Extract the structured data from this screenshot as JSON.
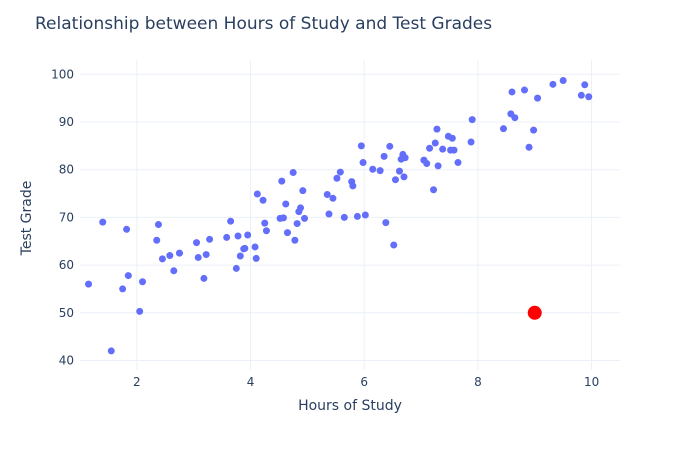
{
  "chart_data": {
    "type": "scatter",
    "title": "Relationship between Hours of Study and Test Grades",
    "xlabel": "Hours of Study",
    "ylabel": "Test Grade",
    "xlim": [
      1,
      10.5
    ],
    "ylim": [
      38,
      103
    ],
    "x_ticks": [
      2,
      4,
      6,
      8,
      10
    ],
    "y_ticks": [
      40,
      50,
      60,
      70,
      80,
      90,
      100
    ],
    "grid": true,
    "legend": "none",
    "colors": {
      "points": "#636efa",
      "highlight": "#ff0000",
      "grid": "#ebf0f8",
      "text": "#2a3f5f"
    },
    "series": [
      {
        "points": [
          [
            1.15,
            56
          ],
          [
            1.4,
            69
          ],
          [
            1.55,
            42
          ],
          [
            1.75,
            55
          ],
          [
            1.82,
            67.5
          ],
          [
            1.85,
            57.8
          ],
          [
            2.05,
            50.3
          ],
          [
            2.1,
            56.5
          ],
          [
            2.35,
            65.2
          ],
          [
            2.38,
            68.5
          ],
          [
            2.45,
            61.3
          ],
          [
            2.58,
            62
          ],
          [
            2.65,
            58.8
          ],
          [
            2.75,
            62.5
          ],
          [
            3.05,
            64.7
          ],
          [
            3.08,
            61.6
          ],
          [
            3.18,
            57.2
          ],
          [
            3.22,
            62.2
          ],
          [
            3.28,
            65.4
          ],
          [
            3.58,
            65.8
          ],
          [
            3.65,
            69.2
          ],
          [
            3.75,
            59.3
          ],
          [
            3.78,
            66.1
          ],
          [
            3.82,
            61.9
          ],
          [
            3.88,
            63.4
          ],
          [
            3.9,
            63.5
          ],
          [
            3.95,
            66.3
          ],
          [
            4.08,
            63.8
          ],
          [
            4.1,
            61.4
          ],
          [
            4.12,
            74.9
          ],
          [
            4.22,
            73.6
          ],
          [
            4.25,
            68.8
          ],
          [
            4.28,
            67.2
          ],
          [
            4.52,
            69.8
          ],
          [
            4.55,
            77.6
          ],
          [
            4.58,
            69.9
          ],
          [
            4.62,
            72.8
          ],
          [
            4.65,
            66.8
          ],
          [
            4.75,
            79.4
          ],
          [
            4.78,
            65.2
          ],
          [
            4.82,
            68.7
          ],
          [
            4.85,
            71.2
          ],
          [
            4.88,
            72
          ],
          [
            4.92,
            75.6
          ],
          [
            4.95,
            69.8
          ],
          [
            5.35,
            74.8
          ],
          [
            5.38,
            70.7
          ],
          [
            5.45,
            74
          ],
          [
            5.52,
            78.2
          ],
          [
            5.58,
            79.5
          ],
          [
            5.65,
            70
          ],
          [
            5.78,
            77.5
          ],
          [
            5.8,
            76.6
          ],
          [
            5.88,
            70.2
          ],
          [
            5.95,
            85
          ],
          [
            5.98,
            81.5
          ],
          [
            6.02,
            70.5
          ],
          [
            6.15,
            80.1
          ],
          [
            6.28,
            79.8
          ],
          [
            6.35,
            82.8
          ],
          [
            6.38,
            68.9
          ],
          [
            6.45,
            84.9
          ],
          [
            6.52,
            64.2
          ],
          [
            6.55,
            77.9
          ],
          [
            6.62,
            79.7
          ],
          [
            6.65,
            82.2
          ],
          [
            6.68,
            83.2
          ],
          [
            6.7,
            78.5
          ],
          [
            6.72,
            82.5
          ],
          [
            7.05,
            82
          ],
          [
            7.1,
            81.3
          ],
          [
            7.15,
            84.5
          ],
          [
            7.22,
            75.8
          ],
          [
            7.25,
            85.6
          ],
          [
            7.28,
            88.5
          ],
          [
            7.3,
            80.8
          ],
          [
            7.38,
            84.3
          ],
          [
            7.48,
            87
          ],
          [
            7.52,
            84.1
          ],
          [
            7.55,
            86.6
          ],
          [
            7.58,
            84.1
          ],
          [
            7.65,
            81.5
          ],
          [
            7.88,
            85.8
          ],
          [
            7.9,
            90.5
          ],
          [
            8.45,
            88.6
          ],
          [
            8.58,
            91.7
          ],
          [
            8.6,
            96.3
          ],
          [
            8.65,
            90.9
          ],
          [
            8.82,
            96.7
          ],
          [
            8.9,
            84.7
          ],
          [
            8.98,
            88.3
          ],
          [
            9.05,
            95
          ],
          [
            9.32,
            97.9
          ],
          [
            9.5,
            98.7
          ],
          [
            9.82,
            95.6
          ],
          [
            9.88,
            97.8
          ],
          [
            9.95,
            95.3
          ]
        ]
      },
      {
        "highlight": true,
        "points": [
          [
            9,
            50
          ]
        ]
      }
    ]
  }
}
